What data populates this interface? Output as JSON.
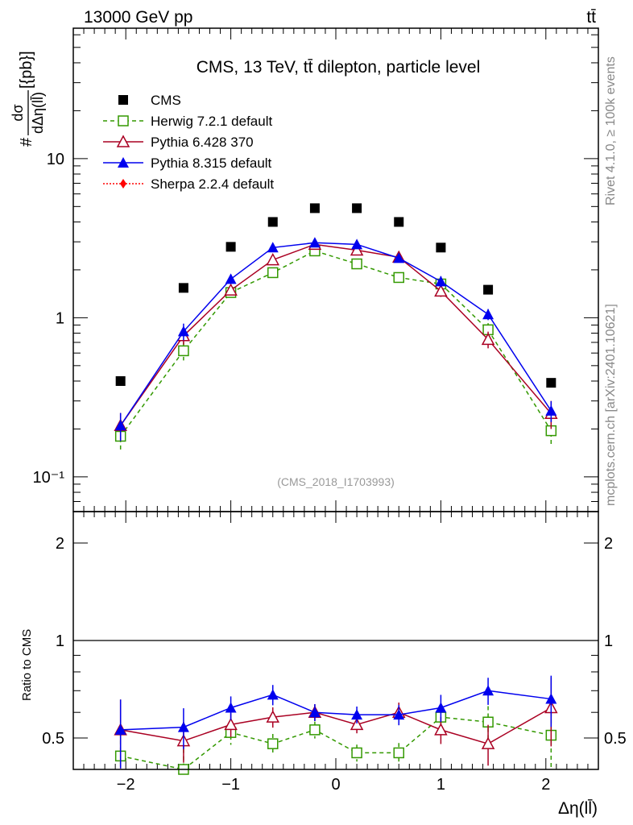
{
  "header": {
    "beam": "13000 GeV pp",
    "process": "tt̄"
  },
  "side": {
    "rivet": "Rivet 4.1.0, ≥ 100k events",
    "mcplots": "mcplots.cern.ch [arXiv:2401.10621]"
  },
  "analysis_id": "(CMS_2018_I1703993)",
  "chart_data": [
    {
      "type": "scatter",
      "title": "CMS, 13 TeV, tt̄ dilepton, particle level",
      "ylabel": "# dσ/dΔη(ll̄) [{pb}]",
      "ylabel_num": "dσ",
      "ylabel_den": "dΔη(ll̄)",
      "ylabel_prefix": "#",
      "ylabel_unit": "[{pb}]",
      "xlabel": "Δη(ll̄)",
      "xlim": [
        -2.5,
        2.5
      ],
      "ylim": [
        0.0605,
        66
      ],
      "yscale": "log",
      "ytick_labels": [
        {
          "value": 0.1,
          "label": "10⁻¹"
        },
        {
          "value": 1,
          "label": "1"
        },
        {
          "value": 10,
          "label": "10"
        }
      ],
      "x": [
        -2.05,
        -1.45,
        -1.0,
        -0.6,
        -0.2,
        0.2,
        0.6,
        1.0,
        1.45,
        2.05
      ],
      "legend_position": "top-left",
      "series": [
        {
          "name": "CMS",
          "color": "#000000",
          "marker": "square-filled",
          "line": "none",
          "values": [
            0.4,
            1.54,
            2.79,
            4.0,
            4.88,
            4.88,
            4.0,
            2.76,
            1.5,
            0.39
          ]
        },
        {
          "name": "Herwig 7.2.1 default",
          "color": "#339900",
          "marker": "square-open",
          "line": "dashed",
          "values": [
            0.18,
            0.62,
            1.44,
            1.92,
            2.63,
            2.18,
            1.79,
            1.63,
            0.84,
            0.195
          ],
          "rel_err": [
            0.2,
            0.13,
            0.07,
            0.06,
            0.05,
            0.05,
            0.06,
            0.07,
            0.1,
            0.2
          ]
        },
        {
          "name": "Pythia 6.428 370",
          "color": "#aa0022",
          "marker": "triangle-open",
          "line": "solid",
          "values": [
            0.21,
            0.77,
            1.49,
            2.31,
            2.89,
            2.66,
            2.4,
            1.47,
            0.73,
            0.25
          ],
          "rel_err": [
            0.2,
            0.12,
            0.07,
            0.06,
            0.05,
            0.05,
            0.06,
            0.08,
            0.12,
            0.2
          ]
        },
        {
          "name": "Pythia 8.315 default",
          "color": "#0000ee",
          "marker": "triangle-filled",
          "line": "solid",
          "values": [
            0.21,
            0.82,
            1.75,
            2.76,
            2.96,
            2.89,
            2.37,
            1.69,
            1.05,
            0.26
          ],
          "rel_err": [
            0.2,
            0.12,
            0.07,
            0.06,
            0.05,
            0.05,
            0.06,
            0.08,
            0.08,
            0.15
          ]
        },
        {
          "name": "Sherpa 2.2.4 default",
          "color": "#ff0000",
          "marker": "diamond-filled",
          "line": "dotted",
          "values": []
        }
      ]
    },
    {
      "type": "scatter",
      "ylabel": "Ratio to CMS",
      "xlabel": "Δη(ll̄)",
      "xlim": [
        -2.5,
        2.5
      ],
      "ylim": [
        0.4,
        2.5
      ],
      "yscale": "log",
      "ytick_labels": [
        {
          "value": 0.5,
          "label": "0.5"
        },
        {
          "value": 1,
          "label": "1"
        },
        {
          "value": 2,
          "label": "2"
        }
      ],
      "xtick_labels": [
        {
          "value": -2,
          "label": "−2"
        },
        {
          "value": -1,
          "label": "−1"
        },
        {
          "value": 0,
          "label": "0"
        },
        {
          "value": 1,
          "label": "1"
        },
        {
          "value": 2,
          "label": "2"
        }
      ],
      "x": [
        -2.05,
        -1.45,
        -1.0,
        -0.6,
        -0.2,
        0.2,
        0.6,
        1.0,
        1.45,
        2.05
      ],
      "series": [
        {
          "name": "Herwig 7.2.1 default",
          "values": [
            0.44,
            0.4,
            0.52,
            0.48,
            0.53,
            0.45,
            0.45,
            0.58,
            0.56,
            0.51
          ]
        },
        {
          "name": "Pythia 6.428 370",
          "values": [
            0.53,
            0.49,
            0.55,
            0.58,
            0.6,
            0.55,
            0.6,
            0.53,
            0.48,
            0.62
          ]
        },
        {
          "name": "Pythia 8.315 default",
          "values": [
            0.53,
            0.54,
            0.62,
            0.68,
            0.6,
            0.59,
            0.59,
            0.62,
            0.7,
            0.66
          ]
        }
      ]
    }
  ]
}
